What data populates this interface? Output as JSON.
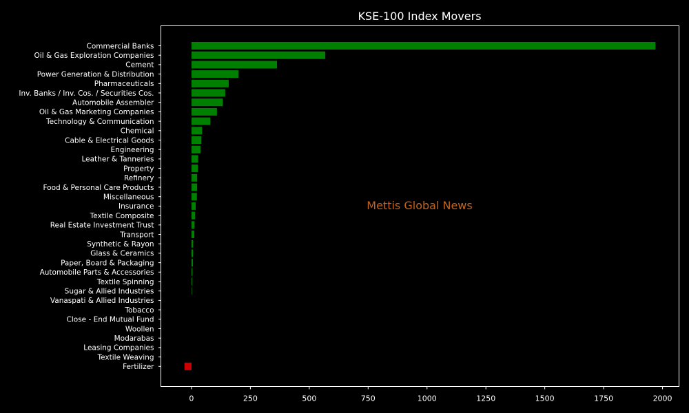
{
  "chart_data": {
    "type": "bar",
    "orientation": "horizontal",
    "title": "KSE-100 Index Movers",
    "xlabel": "",
    "ylabel": "",
    "xlim": [
      -130,
      2070
    ],
    "xticks": [
      0,
      250,
      500,
      750,
      1000,
      1250,
      1500,
      1750,
      2000
    ],
    "grid": false,
    "watermark": "Mettis Global News",
    "colors": {
      "background": "#000000",
      "frame": "#ffffff",
      "text": "#ffffff",
      "positive": "#008000",
      "negative": "#cc0000",
      "watermark": "#c2641f"
    },
    "categories": [
      "Commercial Banks",
      "Oil & Gas Exploration Companies",
      "Cement",
      "Power Generation & Distribution",
      "Pharmaceuticals",
      "Inv. Banks / Inv. Cos. / Securities Cos.",
      "Automobile Assembler",
      "Oil & Gas Marketing Companies",
      "Technology & Communication",
      "Chemical",
      "Cable & Electrical Goods",
      "Engineering",
      "Leather & Tanneries",
      "Property",
      "Refinery",
      "Food & Personal Care Products",
      "Miscellaneous",
      "Insurance",
      "Textile Composite",
      "Real Estate Investment Trust",
      "Transport",
      "Synthetic & Rayon",
      "Glass & Ceramics",
      "Paper, Board & Packaging",
      "Automobile Parts & Accessories",
      "Textile Spinning",
      "Sugar & Allied Industries",
      "Vanaspati & Allied Industries",
      "Tobacco",
      "Close - End Mutual Fund",
      "Woollen",
      "Modarabas",
      "Leasing Companies",
      "Textile Weaving",
      "Fertilizer"
    ],
    "values": [
      1970,
      568,
      363,
      200,
      158,
      143,
      133,
      108,
      80,
      45,
      42,
      38,
      28,
      27,
      24,
      24,
      23,
      18,
      15,
      13,
      12,
      7,
      7,
      6,
      4,
      3,
      2,
      0,
      0,
      0,
      0,
      0,
      0,
      0,
      -30
    ]
  }
}
